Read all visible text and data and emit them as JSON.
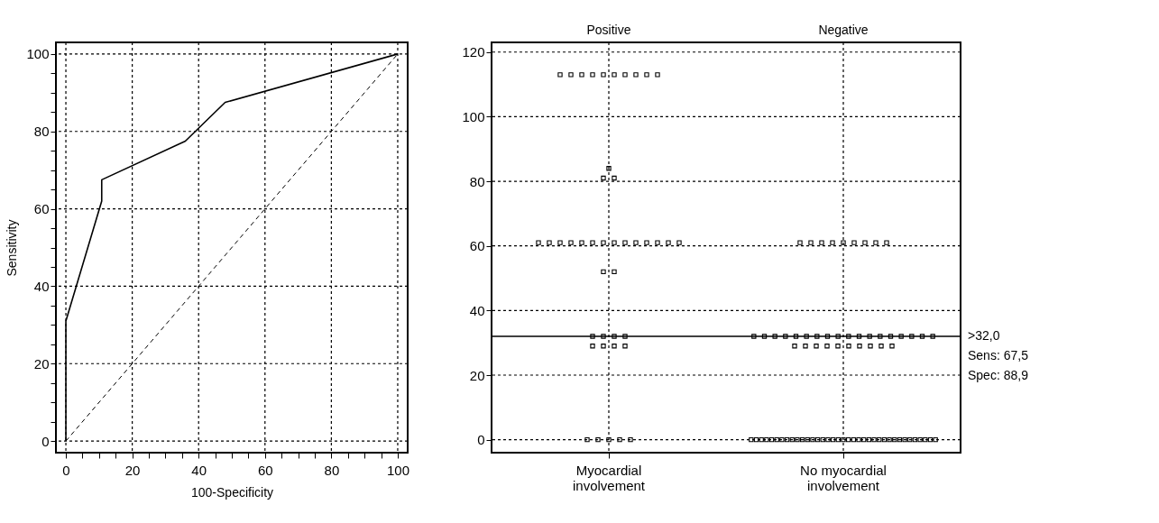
{
  "chart_data": [
    {
      "type": "line",
      "xlabel": "100-Specificity",
      "ylabel": "Sensitivity",
      "xlim": [
        -3,
        103
      ],
      "ylim": [
        -3,
        103
      ],
      "xticks": [
        0,
        {
          "value": 5,
          "label": null
        },
        {
          "value": 10,
          "label": null
        },
        {
          "value": 15,
          "label": null
        },
        20,
        {
          "value": 25,
          "label": null
        },
        {
          "value": 30,
          "label": null
        },
        {
          "value": 35,
          "label": null
        },
        40,
        {
          "value": 45,
          "label": null
        },
        {
          "value": 50,
          "label": null
        },
        {
          "value": 55,
          "label": null
        },
        60,
        {
          "value": 65,
          "label": null
        },
        {
          "value": 70,
          "label": null
        },
        {
          "value": 75,
          "label": null
        },
        80,
        {
          "value": 85,
          "label": null
        },
        {
          "value": 90,
          "label": null
        },
        {
          "value": 95,
          "label": null
        },
        100
      ],
      "yticks": [
        0,
        {
          "value": 5,
          "label": null
        },
        {
          "value": 10,
          "label": null
        },
        {
          "value": 15,
          "label": null
        },
        20,
        {
          "value": 25,
          "label": null
        },
        {
          "value": 30,
          "label": null
        },
        {
          "value": 35,
          "label": null
        },
        40,
        {
          "value": 45,
          "label": null
        },
        {
          "value": 50,
          "label": null
        },
        {
          "value": 55,
          "label": null
        },
        60,
        {
          "value": 65,
          "label": null
        },
        {
          "value": 70,
          "label": null
        },
        {
          "value": 75,
          "label": null
        },
        80,
        {
          "value": 85,
          "label": null
        },
        {
          "value": 90,
          "label": null
        },
        {
          "value": 95,
          "label": null
        },
        100
      ],
      "grid": true,
      "series": [
        {
          "color": "#000000",
          "line_style": "solid",
          "marker": "none",
          "x": [
            0,
            0,
            10.8,
            10.8,
            36,
            48,
            100
          ],
          "values": [
            0,
            31,
            62,
            67.5,
            77.5,
            87.5,
            100
          ]
        },
        {
          "color": "#000000",
          "line_style": "dashed",
          "marker": "none",
          "x": [
            0,
            100
          ],
          "values": [
            0,
            100
          ]
        }
      ]
    },
    {
      "type": "scatter",
      "categories": [
        "Myocardial involvement",
        "No myocardial involvement"
      ],
      "ylim": [
        -4,
        123
      ],
      "yticks": [
        0,
        20,
        40,
        60,
        80,
        100,
        120
      ],
      "grid": true,
      "ref_lines": [
        {
          "axis": "y",
          "value": 32,
          "label": ">32,0",
          "color": "#000000",
          "line_style": "solid"
        }
      ],
      "annotations": [
        "Positive",
        "Negative",
        "Sens: 67,5",
        "Spec: 88,9"
      ],
      "series": [
        {
          "type": "scatter",
          "color": "#000000",
          "marker": "square",
          "x": [
            "Myocardial involvement",
            "Myocardial involvement",
            "Myocardial involvement",
            "Myocardial involvement",
            "Myocardial involvement",
            "Myocardial involvement",
            "Myocardial involvement",
            "Myocardial involvement",
            "Myocardial involvement",
            "Myocardial involvement",
            "Myocardial involvement",
            "Myocardial involvement",
            "Myocardial involvement",
            "Myocardial involvement",
            "Myocardial involvement",
            "Myocardial involvement",
            "Myocardial involvement",
            "Myocardial involvement",
            "Myocardial involvement",
            "Myocardial involvement",
            "Myocardial involvement",
            "Myocardial involvement",
            "Myocardial involvement",
            "Myocardial involvement",
            "Myocardial involvement",
            "Myocardial involvement",
            "Myocardial involvement",
            "Myocardial involvement",
            "Myocardial involvement",
            "Myocardial involvement",
            "Myocardial involvement",
            "Myocardial involvement",
            "Myocardial involvement",
            "Myocardial involvement",
            "Myocardial involvement",
            "Myocardial involvement",
            "Myocardial involvement",
            "Myocardial involvement",
            "Myocardial involvement",
            "Myocardial involvement",
            "Myocardial involvement",
            "Myocardial involvement"
          ],
          "values": [
            113,
            113,
            113,
            113,
            113,
            113,
            113,
            113,
            113,
            113,
            84,
            81,
            81,
            61,
            61,
            61,
            61,
            61,
            61,
            61,
            61,
            61,
            61,
            61,
            61,
            61,
            61,
            52,
            52,
            32,
            32,
            32,
            32,
            29,
            29,
            29,
            29,
            0,
            0,
            0,
            0,
            0
          ]
        },
        {
          "type": "scatter",
          "color": "#000000",
          "marker": "square",
          "x": [
            "No myocardial involvement",
            "No myocardial involvement",
            "No myocardial involvement",
            "No myocardial involvement",
            "No myocardial involvement",
            "No myocardial involvement",
            "No myocardial involvement",
            "No myocardial involvement",
            "No myocardial involvement",
            "No myocardial involvement",
            "No myocardial involvement",
            "No myocardial involvement",
            "No myocardial involvement",
            "No myocardial involvement",
            "No myocardial involvement",
            "No myocardial involvement",
            "No myocardial involvement",
            "No myocardial involvement",
            "No myocardial involvement",
            "No myocardial involvement",
            "No myocardial involvement",
            "No myocardial involvement",
            "No myocardial involvement",
            "No myocardial involvement",
            "No myocardial involvement",
            "No myocardial involvement",
            "No myocardial involvement",
            "No myocardial involvement",
            "No myocardial involvement",
            "No myocardial involvement",
            "No myocardial involvement",
            "No myocardial involvement",
            "No myocardial involvement",
            "No myocardial involvement",
            "No myocardial involvement",
            "No myocardial involvement",
            "No myocardial involvement",
            "No myocardial involvement",
            "No myocardial involvement",
            "No myocardial involvement",
            "No myocardial involvement",
            "No myocardial involvement",
            "No myocardial involvement",
            "No myocardial involvement",
            "No myocardial involvement",
            "No myocardial involvement",
            "No myocardial involvement",
            "No myocardial involvement",
            "No myocardial involvement",
            "No myocardial involvement",
            "No myocardial involvement",
            "No myocardial involvement",
            "No myocardial involvement",
            "No myocardial involvement",
            "No myocardial involvement",
            "No myocardial involvement",
            "No myocardial involvement",
            "No myocardial involvement",
            "No myocardial involvement",
            "No myocardial involvement",
            "No myocardial involvement",
            "No myocardial involvement",
            "No myocardial involvement",
            "No myocardial involvement",
            "No myocardial involvement",
            "No myocardial involvement",
            "No myocardial involvement",
            "No myocardial involvement",
            "No myocardial involvement",
            "No myocardial involvement",
            "No myocardial involvement",
            "No myocardial involvement",
            "No myocardial involvement",
            "No myocardial involvement"
          ],
          "values": [
            61,
            61,
            61,
            61,
            61,
            61,
            61,
            61,
            61,
            32,
            32,
            32,
            32,
            32,
            32,
            32,
            32,
            32,
            32,
            32,
            32,
            32,
            32,
            32,
            32,
            32,
            32,
            29,
            29,
            29,
            29,
            29,
            29,
            29,
            29,
            29,
            29,
            0,
            0,
            0,
            0,
            0,
            0,
            0,
            0,
            0,
            0,
            0,
            0,
            0,
            0,
            0,
            0,
            0,
            0,
            0,
            0,
            0,
            0,
            0,
            0,
            0,
            0,
            0,
            0,
            0,
            0,
            0,
            0,
            0,
            0,
            0,
            0,
            0
          ]
        }
      ]
    }
  ]
}
